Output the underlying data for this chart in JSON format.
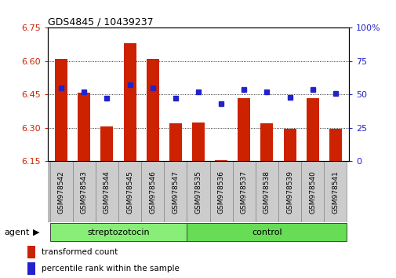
{
  "title": "GDS4845 / 10439237",
  "samples": [
    "GSM978542",
    "GSM978543",
    "GSM978544",
    "GSM978545",
    "GSM978546",
    "GSM978547",
    "GSM978535",
    "GSM978536",
    "GSM978537",
    "GSM978538",
    "GSM978539",
    "GSM978540",
    "GSM978541"
  ],
  "transformed_count": [
    6.61,
    6.46,
    6.305,
    6.68,
    6.61,
    6.32,
    6.325,
    6.155,
    6.435,
    6.32,
    6.295,
    6.435,
    6.295
  ],
  "percentile_rank": [
    55,
    52,
    47,
    57,
    55,
    47,
    52,
    43,
    54,
    52,
    48,
    54,
    51
  ],
  "ylim_left": [
    6.15,
    6.75
  ],
  "ylim_right": [
    0,
    100
  ],
  "yticks_left": [
    6.15,
    6.3,
    6.45,
    6.6,
    6.75
  ],
  "yticks_right": [
    0,
    25,
    50,
    75,
    100
  ],
  "ytick_labels_right": [
    "0",
    "25",
    "50",
    "75",
    "100%"
  ],
  "bar_color": "#cc2200",
  "dot_color": "#2222cc",
  "group_labels": [
    "streptozotocin",
    "control"
  ],
  "group_colors": [
    "#88ee77",
    "#66dd55"
  ],
  "group_split": 6,
  "agent_label": "agent",
  "legend_items": [
    {
      "label": "transformed count",
      "color": "#cc2200"
    },
    {
      "label": "percentile rank within the sample",
      "color": "#2222cc"
    }
  ],
  "bar_width": 0.55,
  "base_value": 6.15,
  "bg_color": "#ffffff",
  "tick_area_color": "#bbbbbb",
  "sep_color": "#888888"
}
